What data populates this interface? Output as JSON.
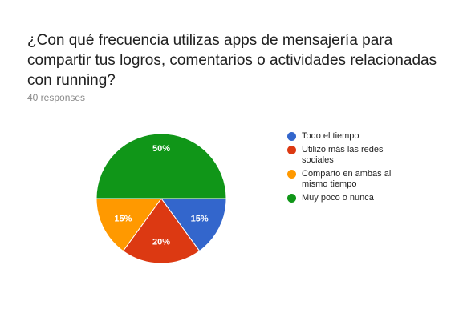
{
  "header": {
    "question": "¿Con qué frecuencia utilizas apps de mensajería para compartir tus logros, comentarios o actividades relacionadas con running?",
    "responses": "40 responses"
  },
  "chart_data": {
    "type": "pie",
    "categories": [
      "Todo el tiempo",
      "Utilizo más las redes sociales",
      "Comparto en ambas al mismo tiempo",
      "Muy poco o nunca"
    ],
    "values": [
      15,
      20,
      15,
      50
    ],
    "labels": [
      "15%",
      "20%",
      "15%",
      "50%"
    ],
    "colors": [
      "#3366cc",
      "#dc3912",
      "#ff9900",
      "#109618"
    ],
    "legend": "right"
  }
}
